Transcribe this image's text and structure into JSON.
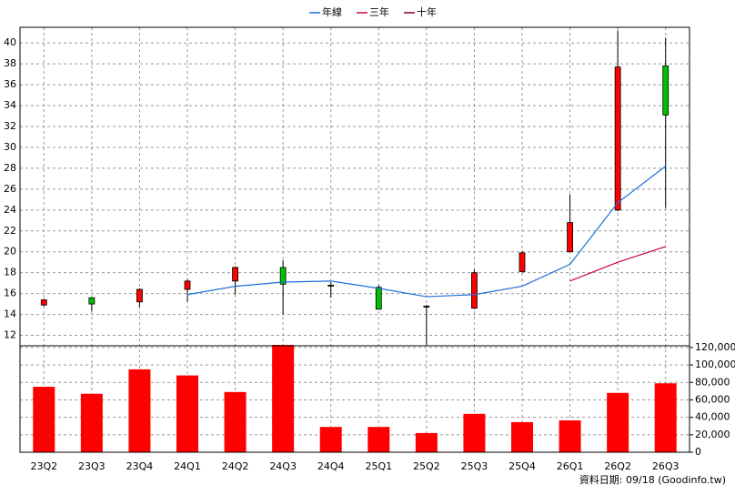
{
  "chart_data": [
    {
      "type": "candlestick",
      "open": [
        14.9,
        15.6,
        15.2,
        16.4,
        17.2,
        18.5,
        16.8,
        16.6,
        14.8,
        14.6,
        18.1,
        20.0,
        24.0,
        37.8
      ],
      "high": [
        15.5,
        15.6,
        16.5,
        17.4,
        18.6,
        19.2,
        17.1,
        16.8,
        14.9,
        18.3,
        20.1,
        25.5,
        41.2,
        40.5
      ],
      "low": [
        14.8,
        14.3,
        14.7,
        15.2,
        15.9,
        14.0,
        15.6,
        14.5,
        11.1,
        14.5,
        18.0,
        20.0,
        23.9,
        24.2
      ],
      "close": [
        15.4,
        15.0,
        16.4,
        17.2,
        18.5,
        16.9,
        16.7,
        14.5,
        14.7,
        18.0,
        19.9,
        22.8,
        37.7,
        33.1
      ],
      "up_color": "#ff0000",
      "down_color": "#00c000",
      "series": [
        {
          "name": "年線",
          "color": "#1e6fd9",
          "values": [
            null,
            null,
            null,
            15.9,
            16.7,
            17.1,
            17.2,
            16.5,
            15.7,
            15.9,
            16.7,
            18.8,
            24.7,
            28.2
          ]
        },
        {
          "name": "三年",
          "color": "#d0003a",
          "values": [
            null,
            null,
            null,
            null,
            null,
            null,
            null,
            null,
            null,
            null,
            null,
            17.2,
            19.0,
            20.5
          ]
        },
        {
          "name": "十年",
          "color": "#800040",
          "values": [
            null,
            null,
            null,
            null,
            null,
            null,
            null,
            null,
            null,
            null,
            null,
            null,
            null,
            null
          ]
        }
      ],
      "ylim": [
        11,
        41.5
      ],
      "yticks": [
        12,
        14,
        16,
        18,
        20,
        22,
        24,
        26,
        28,
        30,
        32,
        34,
        36,
        38,
        40
      ],
      "grid": true
    },
    {
      "type": "bar",
      "categories": [
        "23Q2",
        "23Q3",
        "23Q4",
        "24Q1",
        "24Q2",
        "24Q3",
        "24Q4",
        "25Q1",
        "25Q2",
        "25Q3",
        "25Q4",
        "26Q1",
        "26Q2",
        "26Q3"
      ],
      "values": [
        75000,
        67000,
        95000,
        88000,
        69000,
        123000,
        29000,
        29000,
        22000,
        44000,
        34500,
        36500,
        68000,
        79000
      ],
      "color": "#ff0000",
      "ylim": [
        0,
        122000
      ],
      "yticks": [
        0,
        {
          "value": 20000,
          "label": "20,000"
        },
        {
          "value": 40000,
          "label": "40,000"
        },
        {
          "value": 60000,
          "label": "60,000"
        },
        {
          "value": 80000,
          "label": "80,000"
        },
        {
          "value": 100000,
          "label": "100,000"
        },
        {
          "value": 120000,
          "label": "120,000"
        }
      ],
      "grid": true,
      "note": "資料日期: 09/18  (Goodinfo.tw)"
    }
  ]
}
